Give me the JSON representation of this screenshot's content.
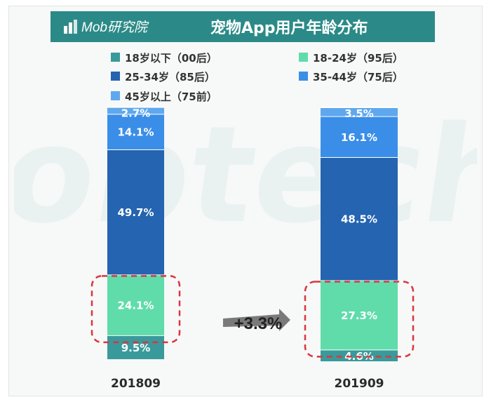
{
  "header": {
    "brand": "Mob研究院",
    "title": "宠物App用户年龄分布"
  },
  "colors": {
    "header_bg": "#2b8a87",
    "under18": "#3a9a9b",
    "age18_24": "#5fdcaa",
    "age25_34": "#2464b0",
    "age35_44": "#3a8ee8",
    "over45": "#5fa8ee",
    "highlight_box": "#d9363e",
    "arrow": "#7a7a7a"
  },
  "chart_data": {
    "type": "bar",
    "stacked": true,
    "percent_stacked": true,
    "title": "宠物App用户年龄分布",
    "categories": [
      "201809",
      "201909"
    ],
    "series": [
      {
        "name": "18岁以下（00后）",
        "key": "under18",
        "values": [
          9.5,
          4.6
        ],
        "labels": [
          "9.5%",
          "4.6%"
        ]
      },
      {
        "name": "18-24岁（95后）",
        "key": "age18_24",
        "values": [
          24.1,
          27.3
        ],
        "labels": [
          "24.1%",
          "27.3%"
        ]
      },
      {
        "name": "25-34岁（85后）",
        "key": "age25_34",
        "values": [
          49.7,
          48.5
        ],
        "labels": [
          "49.7%",
          "48.5%"
        ]
      },
      {
        "name": "35-44岁（75后）",
        "key": "age35_44",
        "values": [
          14.1,
          16.1
        ],
        "labels": [
          "14.1%",
          "16.1%"
        ]
      },
      {
        "name": "45岁以上（75前）",
        "key": "over45",
        "values": [
          2.7,
          3.5
        ],
        "labels": [
          "2.7%",
          "3.5%"
        ]
      }
    ],
    "highlight_series": "age18_24",
    "annotation": "+3.3%",
    "ylim": [
      0,
      100
    ],
    "legend_position": "top"
  }
}
